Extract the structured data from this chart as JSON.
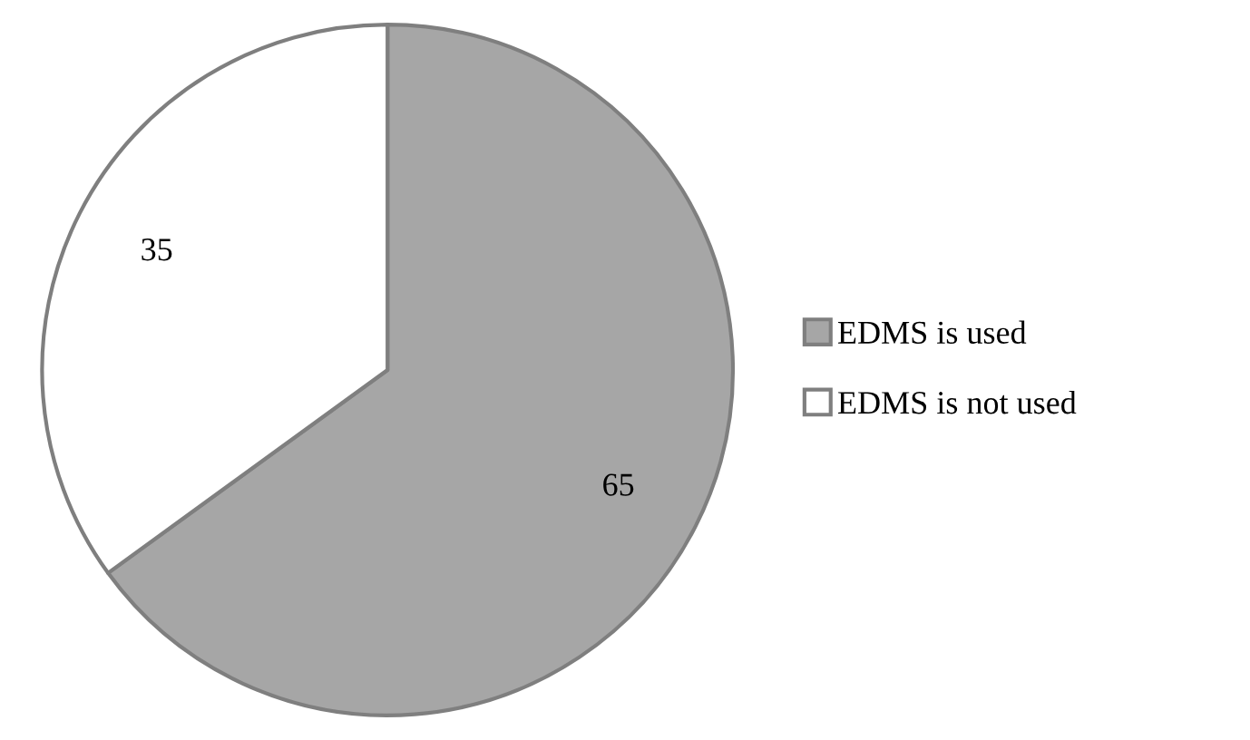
{
  "chart_data": {
    "type": "pie",
    "categories": [
      "EDMS is used",
      "EDMS is not used"
    ],
    "values": [
      65,
      35
    ],
    "colors": [
      "#a6a6a6",
      "#ffffff"
    ],
    "data_labels": true,
    "legend": "right"
  }
}
